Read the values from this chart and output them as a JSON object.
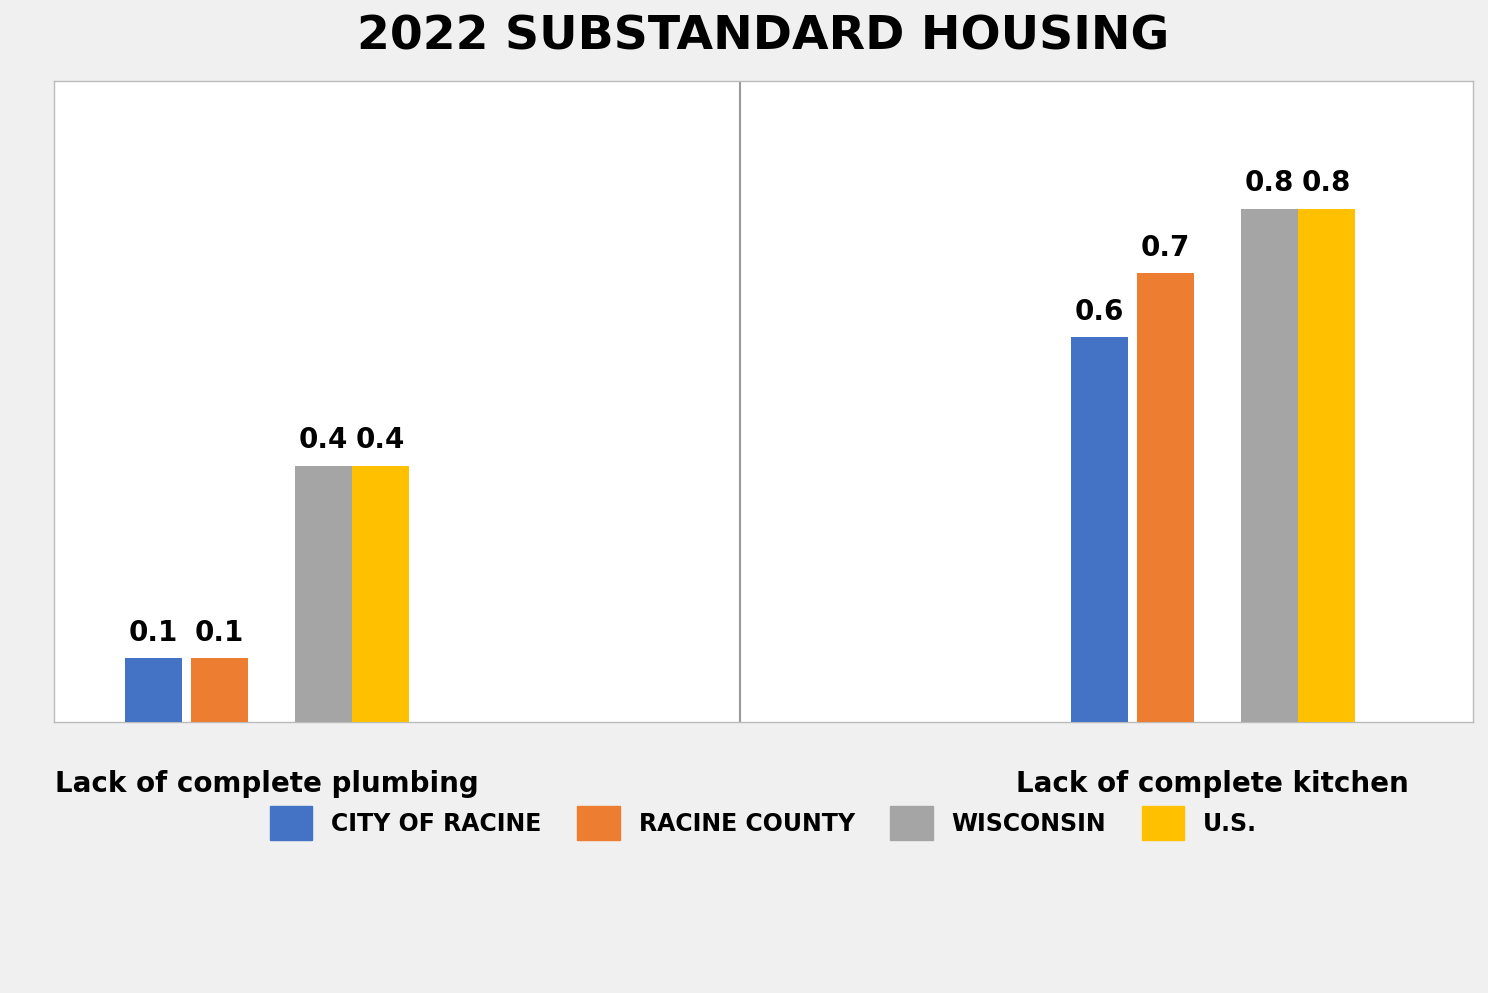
{
  "title": "2022 SUBSTANDARD HOUSING",
  "groups": [
    {
      "label": "Lack of complete plumbing",
      "values": [
        0.1,
        0.1,
        0.4,
        0.4
      ]
    },
    {
      "label": "Lack of complete kitchen",
      "values": [
        0.6,
        0.7,
        0.8,
        0.8
      ]
    }
  ],
  "series_names": [
    "CITY OF RACINE",
    "RACINE COUNTY",
    "WISCONSIN",
    "U.S."
  ],
  "colors": [
    "#4472C4",
    "#ED7D31",
    "#A5A5A5",
    "#FFC000"
  ],
  "ylim": [
    0,
    1.0
  ],
  "bar_width": 0.12,
  "title_fontsize": 34,
  "ylabel_fontsize": 18,
  "xlabel_fontsize": 20,
  "legend_fontsize": 17,
  "value_label_fontsize": 20,
  "background_color": "#f0f0f0",
  "plot_background_color": "#ffffff"
}
